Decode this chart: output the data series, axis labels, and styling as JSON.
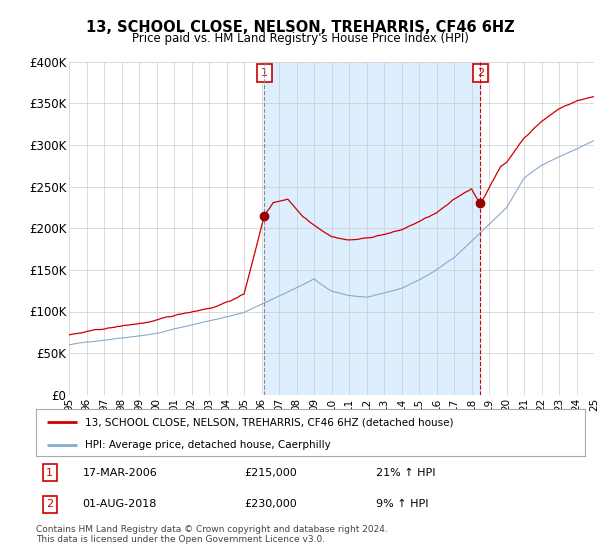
{
  "title": "13, SCHOOL CLOSE, NELSON, TREHARRIS, CF46 6HZ",
  "subtitle": "Price paid vs. HM Land Registry's House Price Index (HPI)",
  "ylim": [
    0,
    400000
  ],
  "yticks": [
    0,
    50000,
    100000,
    150000,
    200000,
    250000,
    300000,
    350000,
    400000
  ],
  "ytick_labels": [
    "£0",
    "£50K",
    "£100K",
    "£150K",
    "£200K",
    "£250K",
    "£300K",
    "£350K",
    "£400K"
  ],
  "sale1_idx": 134,
  "sale1_price": 215000,
  "sale2_idx": 282,
  "sale2_price": 230000,
  "line_color_red": "#cc0000",
  "line_color_blue": "#88aacc",
  "shade_color": "#ddeeff",
  "legend_label_red": "13, SCHOOL CLOSE, NELSON, TREHARRIS, CF46 6HZ (detached house)",
  "legend_label_blue": "HPI: Average price, detached house, Caerphilly",
  "sale1_label": "1",
  "sale1_date": "17-MAR-2006",
  "sale1_amount": "£215,000",
  "sale1_hpi": "21% ↑ HPI",
  "sale2_label": "2",
  "sale2_date": "01-AUG-2018",
  "sale2_amount": "£230,000",
  "sale2_hpi": "9% ↑ HPI",
  "footer": "Contains HM Land Registry data © Crown copyright and database right 2024.\nThis data is licensed under the Open Government Licence v3.0.",
  "background_color": "#ffffff",
  "grid_color": "#cccccc",
  "n_points": 361
}
